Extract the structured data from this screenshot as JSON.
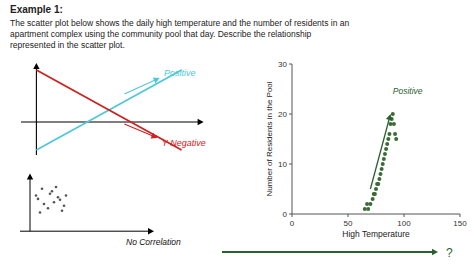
{
  "chart_data": {
    "type": "scatter",
    "title": "Example 1:",
    "subtitle": [
      "The scatter plot below shows the daily high temperature and the number of residents in an",
      "apartment complex using the community pool that day. Describe the relationship",
      "represented in the scatter plot."
    ],
    "x": [
      65,
      67,
      68,
      70,
      72,
      73,
      74,
      75,
      76,
      77,
      78,
      79,
      80,
      81,
      82,
      83,
      84,
      85,
      86,
      87,
      88,
      89,
      90,
      91,
      92,
      93
    ],
    "values": [
      1,
      2,
      1,
      2,
      3,
      4,
      4,
      5,
      6,
      6,
      7,
      8,
      9,
      10,
      11,
      12,
      13,
      14,
      15,
      16,
      18,
      19,
      20,
      18,
      16,
      15
    ],
    "color": "#3a6b35",
    "xlabel": "High Temperature",
    "ylabel": "Number of Residents in the Pool",
    "xlim": [
      0,
      150
    ],
    "ylim": [
      0,
      30
    ],
    "xticks": [
      0,
      50,
      100,
      150
    ],
    "yticks": [
      0,
      10,
      20,
      30
    ],
    "annotations": [
      {
        "text": "Positive",
        "color": "#2a6030",
        "x": 90,
        "y": 24,
        "arrow_from": [
          70,
          5
        ],
        "arrow_to": [
          88,
          20
        ]
      },
      {
        "text": "Positive",
        "color": "#4fc8d8"
      },
      {
        "text": "Y Negative",
        "color": "#cc2222"
      },
      {
        "text": "No Correlation",
        "color": "#111111"
      },
      {
        "text": "?",
        "color": "#2a6030"
      }
    ]
  }
}
